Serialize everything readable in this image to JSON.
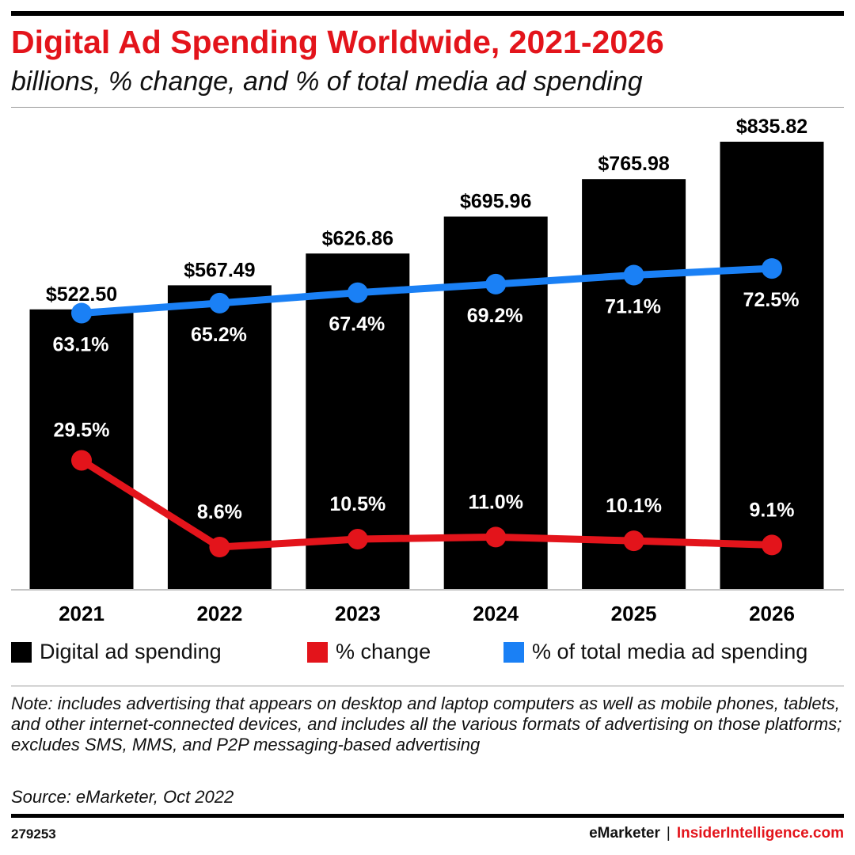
{
  "header": {
    "title": "Digital Ad Spending Worldwide, 2021-2026",
    "subtitle": "billions, % change, and % of total media ad spending"
  },
  "colors": {
    "bar": "#000000",
    "change_line": "#e3141b",
    "share_line": "#1a80f5",
    "title": "#e3141b"
  },
  "chart_data": {
    "type": "bar",
    "categories": [
      "2021",
      "2022",
      "2023",
      "2024",
      "2025",
      "2026"
    ],
    "series": [
      {
        "name": "Digital ad spending",
        "type": "bar",
        "values": [
          522.5,
          567.49,
          626.86,
          695.96,
          765.98,
          835.82
        ],
        "labels": [
          "$522.50",
          "$567.49",
          "$626.86",
          "$695.96",
          "$765.98",
          "$835.82"
        ]
      },
      {
        "name": "% change",
        "type": "line",
        "values": [
          29.5,
          8.6,
          10.5,
          11.0,
          10.1,
          9.1
        ],
        "labels": [
          "29.5%",
          "8.6%",
          "10.5%",
          "11.0%",
          "10.1%",
          "9.1%"
        ]
      },
      {
        "name": "% of total media ad spending",
        "type": "line",
        "values": [
          63.1,
          65.2,
          67.4,
          69.2,
          71.1,
          72.5
        ],
        "labels": [
          "63.1%",
          "65.2%",
          "67.4%",
          "69.2%",
          "71.1%",
          "72.5%"
        ]
      }
    ],
    "ylim": [
      0,
      850
    ],
    "grid": false,
    "legend_position": "bottom"
  },
  "legend": [
    {
      "label": "Digital ad spending",
      "color": "#000000"
    },
    {
      "label": "% change",
      "color": "#e3141b"
    },
    {
      "label": "% of total media ad spending",
      "color": "#1a80f5"
    }
  ],
  "note": "Note: includes advertising that appears on desktop and laptop computers as well as mobile phones, tablets, and other internet-connected devices, and includes all the various formats of advertising on those platforms; excludes SMS, MMS, and P2P messaging-based advertising",
  "source": "Source: eMarketer, Oct 2022",
  "footer": {
    "chart_id": "279253",
    "brand_left": "eMarketer",
    "separator": "|",
    "brand_right": "InsiderIntelligence.com"
  }
}
